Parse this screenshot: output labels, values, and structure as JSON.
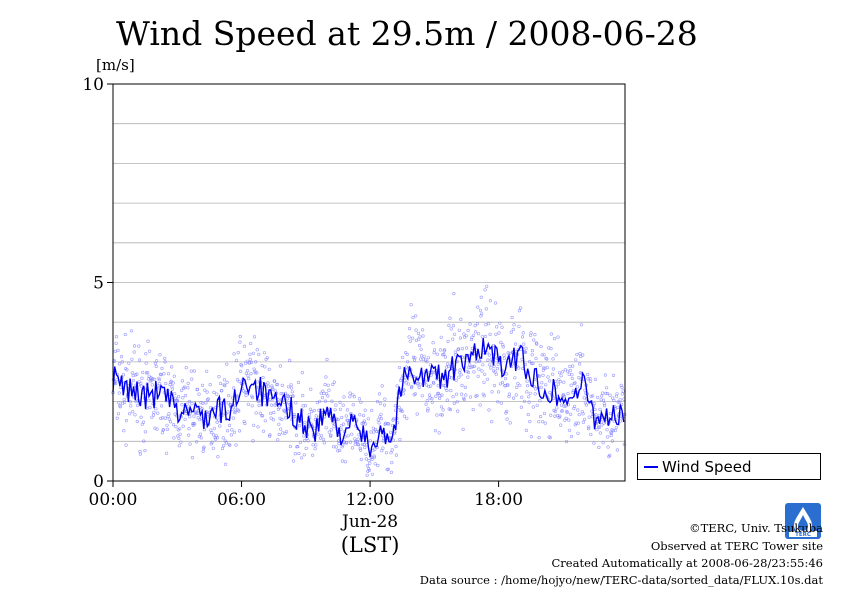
{
  "colors": {
    "series": "#0000ee",
    "points": "#7a7aff",
    "grid": "#b0b0b0",
    "axis": "#000000"
  },
  "chart_data": {
    "type": "line",
    "title": "Wind Speed at 29.5m / 2008-06-28",
    "ylabel": "[m/s]",
    "xlabel": "(LST)",
    "date_label": "Jun-28",
    "ylim": [
      0,
      10
    ],
    "y_ticks": [
      "0",
      "5",
      "10"
    ],
    "x_ticks": [
      "00:00",
      "06:00",
      "12:00",
      "18:00"
    ],
    "xlim_hours": [
      0,
      23.9
    ],
    "grid": true,
    "legend_position": "bottom-right outside",
    "series": [
      {
        "name": "Wind Speed",
        "x_hours": [
          0,
          0.5,
          1,
          1.5,
          2,
          2.5,
          3,
          3.5,
          4,
          4.5,
          5,
          5.5,
          6,
          6.5,
          7,
          7.5,
          8,
          8.5,
          9,
          9.5,
          10,
          10.5,
          11,
          11.5,
          12,
          12.5,
          13,
          13.5,
          14,
          14.5,
          15,
          15.5,
          16,
          16.5,
          17,
          17.5,
          18,
          18.5,
          19,
          19.5,
          20,
          20.5,
          21,
          21.5,
          22,
          22.5,
          23,
          23.5
        ],
        "values": [
          2.6,
          2.3,
          2.3,
          2.1,
          2.2,
          2.1,
          1.7,
          1.8,
          1.7,
          1.6,
          1.8,
          1.7,
          2.5,
          2.5,
          2.2,
          1.9,
          1.9,
          1.7,
          1.4,
          1.3,
          1.8,
          1.2,
          1.4,
          1.3,
          0.8,
          1.4,
          1.0,
          2.5,
          2.8,
          2.6,
          2.7,
          2.6,
          2.9,
          2.9,
          3.4,
          3.3,
          3.0,
          2.8,
          3.3,
          2.6,
          2.4,
          2.3,
          2.0,
          2.2,
          2.4,
          1.6,
          1.7,
          1.6
        ],
        "scatter_spread": "raw 10-second samples scattered around the line (approx. ±1 m/s)"
      }
    ]
  },
  "legend_label": "Wind Speed",
  "footer": {
    "copyright": "©TERC, Univ. Tsukuba",
    "observed": "Observed at TERC Tower site",
    "created": "Created Automatically at 2008-06-28/23:55:46",
    "source": "Data source : /home/hojyo/new/TERC-data/sorted_data/FLUX.10s.dat"
  },
  "logo_text": "TERC"
}
